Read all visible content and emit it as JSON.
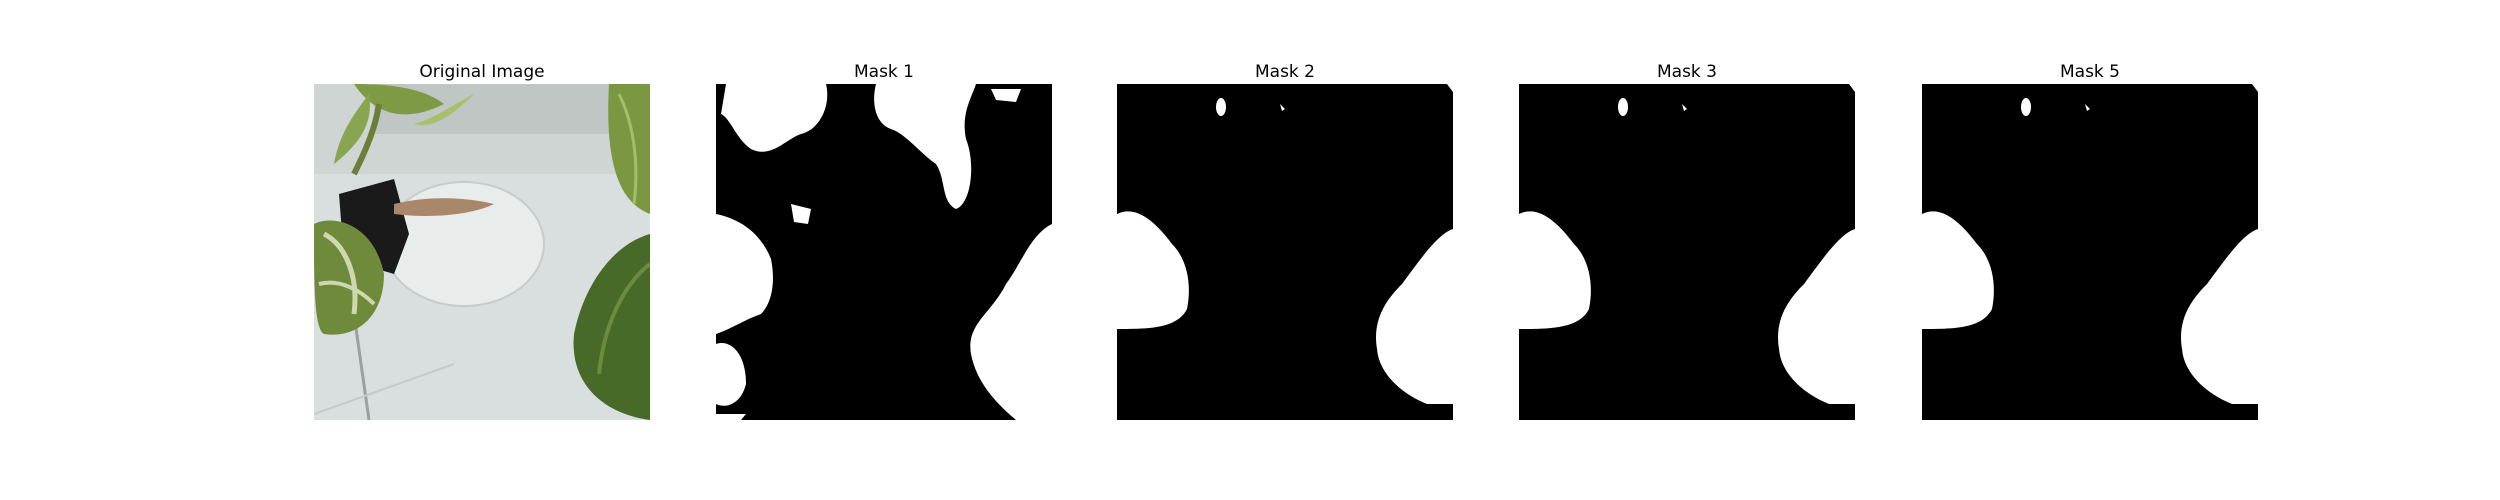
{
  "panels": [
    {
      "title": "Original Image",
      "kind": "photo"
    },
    {
      "title": "Mask 1",
      "kind": "mask"
    },
    {
      "title": "Mask 2",
      "kind": "mask"
    },
    {
      "title": "Mask 3",
      "kind": "mask"
    },
    {
      "title": "Mask 5",
      "kind": "mask"
    }
  ],
  "colors": {
    "mask_foreground": "#ffffff",
    "mask_background": "#000000",
    "photo_background": "#d7dcdb",
    "leaf_green": "#6f8a3e",
    "dark_leaf": "#3f5a24",
    "bag_black": "#1b1b1b",
    "dry_leaf": "#a9876a"
  }
}
